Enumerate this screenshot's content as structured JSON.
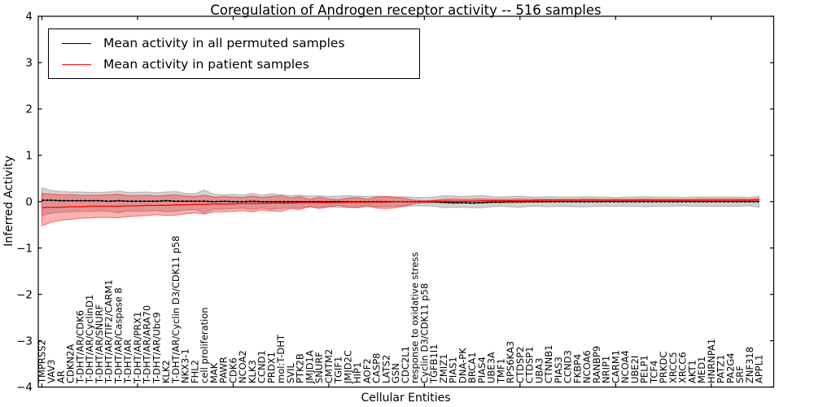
{
  "chart_data": {
    "type": "line",
    "title": "Coregulation of Androgen receptor activity -- 516 samples",
    "xlabel": "Cellular Entities",
    "ylabel": "Inferred Activity",
    "ylim": [
      -4,
      4
    ],
    "yticks": [
      4,
      3,
      2,
      1,
      0,
      -1,
      -2,
      -3,
      -4
    ],
    "ytick_labels": [
      "4",
      "3",
      "2",
      "1",
      "0",
      "−1",
      "−2",
      "−3",
      "−4"
    ],
    "xtick_step": 10,
    "grid": false,
    "legend_position": "upper left",
    "categories": [
      "TMPRSS2",
      "VAV3",
      "AR",
      "CDKN2A",
      "T-DHT/AR/CDK6",
      "T-DHT/AR/CyclinD1",
      "T-DHT/AR/SNURF",
      "T-DHT/AR/TIF2/CARM1",
      "T-DHT/AR/Caspase 8",
      "T-DHT/AR",
      "T-DHT/AR/PRX1",
      "T-DHT/AR/ARA70",
      "T-DHT/AR/Ubc9",
      "KLK2",
      "T-DHT/AR/Cyclin D3/CDK11 p58",
      "NKX3-1",
      "FHL2",
      "cell proliferation",
      "MAK",
      "PAWR",
      "CDK6",
      "NCOA2",
      "KLK3",
      "CCND1",
      "PRDX1",
      "mol:T-DHT",
      "SVIL",
      "PTK2B",
      "JMJD1A",
      "SNURF",
      "CMTM2",
      "TGIF1",
      "JMJD2C",
      "HIP1",
      "AOF2",
      "CASP8",
      "LATS2",
      "GSN",
      "CDC2L1",
      "response to oxidative stress",
      "Cyclin D3/CDK11 p58",
      "TGFB1I1",
      "ZMIZ1",
      "PIAS1",
      "DNA-PK",
      "BRCA1",
      "PIAS4",
      "UBE3A",
      "TMF1",
      "RPS6KA3",
      "CTDSP2",
      "CTDSP1",
      "UBA3",
      "CTNNB1",
      "PIAS3",
      "CCND3",
      "FKBP4",
      "NCOA6",
      "RANBP9",
      "NRIP1",
      "CARM1",
      "NCOA4",
      "UBE2I",
      "PELP1",
      "TCF4",
      "PRKDC",
      "XRCC5",
      "XRCC6",
      "AKT1",
      "MED1",
      "HNRNPA1",
      "PATZ1",
      "PA2G4",
      "SRF",
      "ZNF318",
      "APPL1"
    ],
    "series": [
      {
        "name": "Mean activity in all permuted samples",
        "color": "#000000",
        "style": "solid-with-dash-markers",
        "values": [
          0.03,
          0.03,
          0.02,
          0.02,
          0.02,
          0.02,
          0.02,
          0.01,
          0.02,
          0.01,
          0.01,
          0.01,
          0.01,
          0.02,
          0.01,
          0.01,
          0.01,
          0.01,
          0.0,
          0.01,
          0.0,
          0.0,
          0.01,
          0.0,
          0.0,
          0.0,
          0.0,
          0.0,
          0.0,
          0.0,
          0.0,
          0.0,
          0.0,
          0.0,
          0.0,
          0.0,
          0.0,
          0.0,
          0.0,
          0.0,
          0.0,
          0.0,
          -0.01,
          -0.02,
          -0.02,
          -0.03,
          -0.02,
          -0.01,
          -0.01,
          0.0,
          0.0,
          0.0,
          0.0,
          0.0,
          0.0,
          0.0,
          0.0,
          0.0,
          0.0,
          0.0,
          0.0,
          0.0,
          0.0,
          0.0,
          0.0,
          0.0,
          0.0,
          0.0,
          0.0,
          0.0,
          0.0,
          0.0,
          0.0,
          0.0,
          0.0,
          0.0
        ]
      },
      {
        "name": "Mean activity in patient samples",
        "color": "#ff0000",
        "style": "solid",
        "values": [
          -0.13,
          -0.12,
          -0.12,
          -0.11,
          -0.11,
          -0.1,
          -0.1,
          -0.1,
          -0.1,
          -0.09,
          -0.09,
          -0.08,
          -0.08,
          -0.08,
          -0.07,
          -0.07,
          -0.06,
          -0.06,
          -0.05,
          -0.05,
          -0.05,
          -0.04,
          -0.04,
          -0.04,
          -0.03,
          -0.03,
          -0.03,
          -0.02,
          -0.02,
          -0.02,
          -0.02,
          -0.02,
          -0.01,
          -0.01,
          -0.01,
          -0.01,
          -0.01,
          0.0,
          0.0,
          0.0,
          0.0,
          0.01,
          0.01,
          0.01,
          0.01,
          0.01,
          0.02,
          0.02,
          0.02,
          0.02,
          0.02,
          0.02,
          0.03,
          0.03,
          0.03,
          0.03,
          0.03,
          0.03,
          0.03,
          0.03,
          0.03,
          0.03,
          0.03,
          0.03,
          0.03,
          0.03,
          0.03,
          0.03,
          0.03,
          0.03,
          0.03,
          0.03,
          0.03,
          0.03,
          0.03,
          0.04
        ]
      }
    ],
    "bands": [
      {
        "name": "permuted-samples-range",
        "color": "#808080",
        "fill_opacity": 0.35,
        "edge_opacity": 0.45,
        "upper": [
          0.3,
          0.24,
          0.22,
          0.21,
          0.21,
          0.2,
          0.2,
          0.21,
          0.23,
          0.2,
          0.2,
          0.21,
          0.19,
          0.21,
          0.22,
          0.18,
          0.17,
          0.25,
          0.16,
          0.15,
          0.16,
          0.14,
          0.18,
          0.14,
          0.17,
          0.15,
          0.13,
          0.14,
          0.12,
          0.13,
          0.11,
          0.12,
          0.13,
          0.12,
          0.11,
          0.12,
          0.11,
          0.1,
          0.11,
          0.09,
          0.09,
          0.1,
          0.13,
          0.12,
          0.11,
          0.12,
          0.13,
          0.11,
          0.1,
          0.11,
          0.12,
          0.1,
          0.1,
          0.11,
          0.1,
          0.1,
          0.1,
          0.11,
          0.1,
          0.1,
          0.09,
          0.1,
          0.1,
          0.11,
          0.1,
          0.1,
          0.1,
          0.09,
          0.1,
          0.1,
          0.1,
          0.1,
          0.1,
          0.1,
          0.09,
          0.12
        ],
        "lower": [
          -0.3,
          -0.25,
          -0.23,
          -0.22,
          -0.21,
          -0.21,
          -0.2,
          -0.21,
          -0.24,
          -0.2,
          -0.21,
          -0.2,
          -0.19,
          -0.22,
          -0.21,
          -0.18,
          -0.17,
          -0.24,
          -0.16,
          -0.16,
          -0.15,
          -0.14,
          -0.17,
          -0.14,
          -0.16,
          -0.15,
          -0.13,
          -0.13,
          -0.12,
          -0.12,
          -0.11,
          -0.12,
          -0.12,
          -0.12,
          -0.11,
          -0.11,
          -0.11,
          -0.1,
          -0.1,
          -0.09,
          -0.09,
          -0.1,
          -0.13,
          -0.12,
          -0.12,
          -0.13,
          -0.13,
          -0.11,
          -0.1,
          -0.11,
          -0.12,
          -0.1,
          -0.1,
          -0.11,
          -0.1,
          -0.1,
          -0.11,
          -0.11,
          -0.1,
          -0.1,
          -0.1,
          -0.1,
          -0.1,
          -0.11,
          -0.1,
          -0.1,
          -0.1,
          -0.09,
          -0.1,
          -0.1,
          -0.1,
          -0.1,
          -0.1,
          -0.1,
          -0.09,
          -0.12
        ]
      },
      {
        "name": "patient-samples-range",
        "color": "#ff0000",
        "fill_opacity": 0.3,
        "edge_opacity": 0.45,
        "upper": [
          0.18,
          0.16,
          0.15,
          0.15,
          0.14,
          0.14,
          0.14,
          0.15,
          0.16,
          0.13,
          0.13,
          0.14,
          0.12,
          0.14,
          0.15,
          0.12,
          0.11,
          0.14,
          0.1,
          0.11,
          0.1,
          0.09,
          0.12,
          0.09,
          0.11,
          0.13,
          0.08,
          0.11,
          0.05,
          0.1,
          0.06,
          0.04,
          0.08,
          0.09,
          0.05,
          0.1,
          0.11,
          0.1,
          0.07,
          0.03,
          0.02,
          0.03,
          0.05,
          0.06,
          0.05,
          0.05,
          0.06,
          0.05,
          0.05,
          0.05,
          0.06,
          0.05,
          0.05,
          0.05,
          0.05,
          0.05,
          0.05,
          0.06,
          0.05,
          0.05,
          0.05,
          0.05,
          0.05,
          0.06,
          0.05,
          0.05,
          0.05,
          0.05,
          0.05,
          0.06,
          0.06,
          0.06,
          0.06,
          0.06,
          0.05,
          0.07
        ],
        "lower": [
          -0.52,
          -0.44,
          -0.4,
          -0.38,
          -0.36,
          -0.35,
          -0.34,
          -0.34,
          -0.35,
          -0.32,
          -0.31,
          -0.3,
          -0.28,
          -0.3,
          -0.29,
          -0.26,
          -0.24,
          -0.27,
          -0.22,
          -0.22,
          -0.21,
          -0.19,
          -0.22,
          -0.18,
          -0.2,
          -0.21,
          -0.15,
          -0.17,
          -0.1,
          -0.15,
          -0.11,
          -0.08,
          -0.12,
          -0.13,
          -0.08,
          -0.14,
          -0.15,
          -0.13,
          -0.09,
          -0.04,
          -0.02,
          -0.02,
          -0.03,
          -0.04,
          -0.03,
          -0.03,
          -0.03,
          -0.02,
          -0.02,
          -0.02,
          -0.02,
          -0.01,
          -0.01,
          -0.01,
          0.0,
          0.0,
          0.0,
          0.0,
          0.0,
          0.01,
          0.01,
          0.01,
          0.01,
          0.01,
          0.01,
          0.01,
          0.01,
          0.01,
          0.01,
          0.01,
          0.01,
          0.01,
          0.01,
          0.01,
          0.01,
          0.01
        ]
      }
    ]
  }
}
